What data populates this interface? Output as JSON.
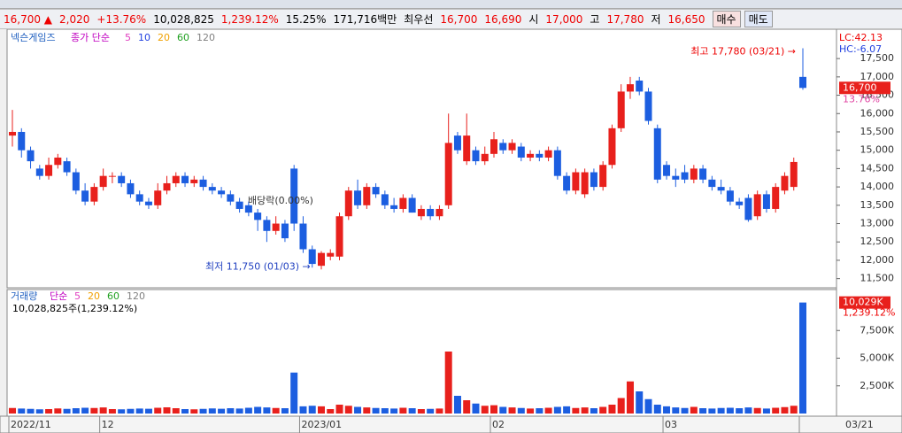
{
  "info": {
    "price": "16,700 ▲",
    "change": "2,020",
    "change_pct": "+13.76%",
    "volume": "10,028,825",
    "volume_ratio": "1,239.12%",
    "turnover": "15.25%",
    "amount": "171,716백만",
    "best_label": "최우선",
    "best_ask": "16,700",
    "best_bid": "16,690",
    "open_label": "시",
    "open": "17,000",
    "high_label": "고",
    "high": "17,780",
    "low_label": "저",
    "low": "16,650",
    "buy": "매수",
    "sell": "매도"
  },
  "chart_data": [
    {
      "type": "candlestick",
      "title": "넥슨게임즈",
      "ma_label": "종가 단순",
      "ma_periods": [
        {
          "label": "5",
          "color": "#e040c0"
        },
        {
          "label": "10",
          "color": "#2040e0"
        },
        {
          "label": "20",
          "color": "#f0a000"
        },
        {
          "label": "60",
          "color": "#20a020"
        },
        {
          "label": "120",
          "color": "#808080"
        }
      ],
      "up_color": "#e8201c",
      "down_color": "#1c5ee0",
      "categories": [
        "2022/11",
        null,
        null,
        null,
        null,
        null,
        null,
        null,
        null,
        null,
        "12",
        null,
        null,
        null,
        null,
        null,
        null,
        null,
        null,
        null,
        null,
        null,
        null,
        null,
        null,
        null,
        null,
        null,
        null,
        null,
        null,
        null,
        "2023/01",
        null,
        null,
        null,
        null,
        null,
        null,
        null,
        null,
        null,
        null,
        null,
        null,
        null,
        null,
        null,
        null,
        null,
        null,
        null,
        null,
        "02",
        null,
        null,
        null,
        null,
        null,
        null,
        null,
        null,
        null,
        null,
        null,
        null,
        null,
        null,
        null,
        null,
        null,
        null,
        "03",
        null,
        null,
        null,
        null,
        null,
        null,
        null,
        null,
        null,
        null,
        null,
        null,
        null,
        null
      ],
      "date_label": "03/21",
      "candles": [
        [
          15400,
          16100,
          15100,
          15500
        ],
        [
          15500,
          15600,
          14800,
          15000
        ],
        [
          15000,
          15100,
          14500,
          14700
        ],
        [
          14500,
          14600,
          14200,
          14300
        ],
        [
          14300,
          14800,
          14200,
          14600
        ],
        [
          14600,
          14900,
          14500,
          14800
        ],
        [
          14700,
          14800,
          14300,
          14400
        ],
        [
          14400,
          14500,
          13800,
          13900
        ],
        [
          13900,
          14100,
          13500,
          13600
        ],
        [
          13600,
          14100,
          13500,
          14000
        ],
        [
          14000,
          14500,
          13900,
          14300
        ],
        [
          14300,
          14400,
          14100,
          14300
        ],
        [
          14300,
          14400,
          14000,
          14100
        ],
        [
          14100,
          14200,
          13700,
          13800
        ],
        [
          13800,
          13900,
          13500,
          13600
        ],
        [
          13600,
          13700,
          13400,
          13500
        ],
        [
          13500,
          14100,
          13400,
          13900
        ],
        [
          13900,
          14300,
          13800,
          14100
        ],
        [
          14100,
          14400,
          14000,
          14300
        ],
        [
          14300,
          14400,
          14000,
          14100
        ],
        [
          14100,
          14300,
          14000,
          14200
        ],
        [
          14200,
          14300,
          13900,
          14000
        ],
        [
          14000,
          14100,
          13800,
          13900
        ],
        [
          13900,
          14000,
          13700,
          13800
        ],
        [
          13800,
          13900,
          13500,
          13600
        ],
        [
          13600,
          13700,
          13300,
          13400
        ],
        [
          13500,
          13600,
          13200,
          13300
        ],
        [
          13300,
          13400,
          12800,
          13100
        ],
        [
          13100,
          13200,
          12500,
          12800
        ],
        [
          12800,
          13200,
          12700,
          13000
        ],
        [
          13000,
          13100,
          12500,
          12600
        ],
        [
          14500,
          14600,
          12800,
          13000
        ],
        [
          13000,
          13200,
          12200,
          12300
        ],
        [
          12300,
          12400,
          11800,
          11900
        ],
        [
          11850,
          12250,
          11750,
          12200
        ],
        [
          12100,
          12300,
          12000,
          12200
        ],
        [
          12100,
          13300,
          12000,
          13200
        ],
        [
          13200,
          14000,
          13100,
          13900
        ],
        [
          13900,
          14200,
          13400,
          13500
        ],
        [
          13500,
          14100,
          13400,
          14000
        ],
        [
          14000,
          14100,
          13700,
          13800
        ],
        [
          13800,
          13900,
          13400,
          13500
        ],
        [
          13500,
          13700,
          13300,
          13400
        ],
        [
          13400,
          13800,
          13300,
          13700
        ],
        [
          13700,
          13800,
          13300,
          13300
        ],
        [
          13200,
          13500,
          13100,
          13400
        ],
        [
          13400,
          13500,
          13100,
          13200
        ],
        [
          13200,
          13500,
          13100,
          13400
        ],
        [
          13500,
          16000,
          13400,
          15200
        ],
        [
          15400,
          15500,
          14900,
          15000
        ],
        [
          14700,
          16000,
          14600,
          15400
        ],
        [
          15000,
          15100,
          14600,
          14700
        ],
        [
          14700,
          15100,
          14600,
          14900
        ],
        [
          14900,
          15500,
          14800,
          15300
        ],
        [
          15200,
          15300,
          14900,
          15000
        ],
        [
          15000,
          15300,
          14900,
          15200
        ],
        [
          15100,
          15200,
          14700,
          14800
        ],
        [
          14800,
          15000,
          14700,
          14900
        ],
        [
          14900,
          15000,
          14700,
          14800
        ],
        [
          14800,
          15100,
          14700,
          15000
        ],
        [
          15000,
          15100,
          14200,
          14300
        ],
        [
          14300,
          14400,
          13800,
          13900
        ],
        [
          13900,
          14500,
          13800,
          14400
        ],
        [
          13800,
          14500,
          13700,
          14400
        ],
        [
          14400,
          14500,
          13900,
          14000
        ],
        [
          14000,
          14700,
          13900,
          14600
        ],
        [
          14600,
          15700,
          14500,
          15600
        ],
        [
          15600,
          16800,
          15500,
          16600
        ],
        [
          16600,
          17000,
          16400,
          16800
        ],
        [
          16900,
          17000,
          16500,
          16600
        ],
        [
          16600,
          16700,
          15700,
          15800
        ],
        [
          15600,
          15700,
          14100,
          14200
        ],
        [
          14600,
          14700,
          14200,
          14300
        ],
        [
          14300,
          14500,
          14000,
          14200
        ],
        [
          14400,
          14600,
          14100,
          14200
        ],
        [
          14200,
          14600,
          14100,
          14500
        ],
        [
          14500,
          14600,
          14100,
          14200
        ],
        [
          14200,
          14300,
          13900,
          14000
        ],
        [
          14000,
          14200,
          13800,
          13900
        ],
        [
          13900,
          14000,
          13500,
          13600
        ],
        [
          13600,
          13700,
          13400,
          13500
        ],
        [
          13700,
          13800,
          13050,
          13100
        ],
        [
          13200,
          13900,
          13100,
          13800
        ],
        [
          13800,
          13900,
          13300,
          13400
        ],
        [
          13400,
          14100,
          13300,
          14000
        ],
        [
          13900,
          14400,
          13800,
          14300
        ],
        [
          14000,
          14800,
          13900,
          14680
        ],
        [
          17000,
          17780,
          16650,
          16700
        ]
      ],
      "ylim": [
        11250,
        18300
      ],
      "yticks": [
        {
          "value": 11500,
          "label": "11,500"
        },
        {
          "value": 12000,
          "label": "12,000"
        },
        {
          "value": 12500,
          "label": "12,500"
        },
        {
          "value": 13000,
          "label": "13,000"
        },
        {
          "value": 13500,
          "label": "13,500"
        },
        {
          "value": 14000,
          "label": "14,000"
        },
        {
          "value": 14500,
          "label": "14,500"
        },
        {
          "value": 15000,
          "label": "15,000"
        },
        {
          "value": 15500,
          "label": "15,500"
        },
        {
          "value": 16000,
          "label": "16,000"
        },
        {
          "value": 16500,
          "label": "16,500"
        },
        {
          "value": 17000,
          "label": "17,000"
        },
        {
          "value": 17500,
          "label": "17,500"
        }
      ],
      "last_price": {
        "value": 16700,
        "label": "16,700"
      },
      "last_change": "13.76%",
      "lc": "LC:42.13",
      "hc": "HC:-6.07",
      "annotations": [
        {
          "text": "최고 17,780 (03/21) →",
          "value": 17780
        },
        {
          "text": "최저 11,750 (01/03) →",
          "value": 11750
        },
        {
          "text": "배당락(0.00%)"
        }
      ]
    },
    {
      "type": "volume-bar",
      "title": "거래량",
      "ma_label": "단순",
      "ma_periods": [
        {
          "label": "5",
          "color": "#e040c0"
        },
        {
          "label": "20",
          "color": "#f0a000"
        },
        {
          "label": "60",
          "color": "#20a020"
        },
        {
          "label": "120",
          "color": "#808080"
        }
      ],
      "caption": "10,028,825주(1,239.12%)",
      "values": [
        500,
        450,
        420,
        380,
        400,
        460,
        420,
        480,
        520,
        500,
        550,
        400,
        380,
        420,
        450,
        430,
        520,
        560,
        480,
        400,
        380,
        420,
        460,
        430,
        480,
        450,
        520,
        600,
        550,
        500,
        480,
        3700,
        650,
        700,
        650,
        400,
        800,
        700,
        600,
        550,
        500,
        480,
        450,
        520,
        480,
        400,
        420,
        450,
        5600,
        1600,
        1200,
        900,
        700,
        750,
        600,
        550,
        500,
        450,
        480,
        520,
        600,
        650,
        500,
        550,
        480,
        600,
        800,
        1400,
        2900,
        2000,
        1300,
        800,
        650,
        550,
        500,
        600,
        480,
        450,
        500,
        520,
        480,
        550,
        500,
        450,
        520,
        580,
        700,
        10029
      ],
      "ylim": [
        0,
        11200
      ],
      "yticks": [
        {
          "value": 2500,
          "label": "2,500K"
        },
        {
          "value": 5000,
          "label": "5,000K"
        },
        {
          "value": 7500,
          "label": "7,500K"
        }
      ],
      "last_value": {
        "value": 10029,
        "label": "10,029K"
      },
      "last_ratio": "1,239.12%"
    }
  ]
}
